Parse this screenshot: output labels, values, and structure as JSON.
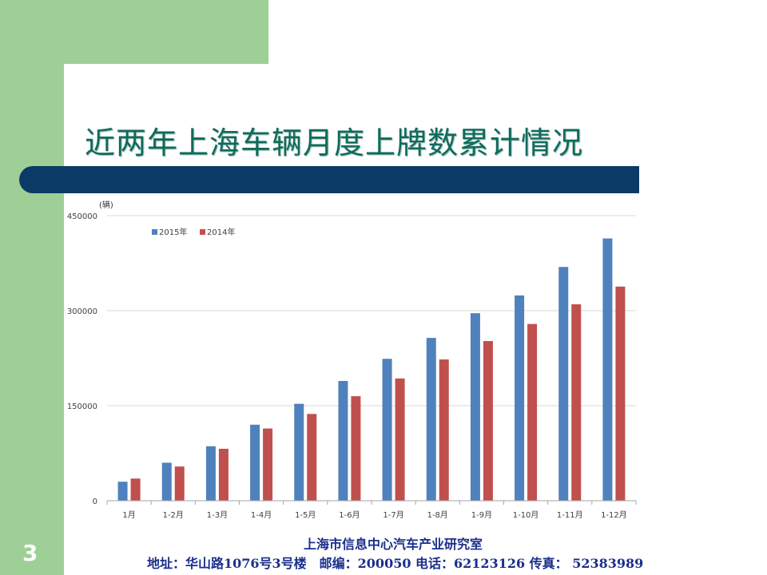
{
  "slide": {
    "title": "近两年上海车辆月度上牌数累计情况",
    "page_number": "3"
  },
  "footer": {
    "org": "上海市信息中心汽车产业研究室",
    "address": "地址：华山路1076号3号楼　邮编：200050  电话：62123126  传真：  52383989"
  },
  "chart_data": {
    "type": "bar",
    "unit_label": "(辆)",
    "categories": [
      "1月",
      "1-2月",
      "1-3月",
      "1-4月",
      "1-5月",
      "1-6月",
      "1-7月",
      "1-8月",
      "1-9月",
      "1-10月",
      "1-11月",
      "1-12月"
    ],
    "series": [
      {
        "name": "2015年",
        "color": "#4f81bd",
        "values": [
          30000,
          60000,
          86000,
          120000,
          153000,
          189000,
          224000,
          257000,
          296000,
          324000,
          369000,
          414000
        ]
      },
      {
        "name": "2014年",
        "color": "#c0504d",
        "values": [
          35000,
          54000,
          82000,
          114000,
          137000,
          165000,
          193000,
          223000,
          252000,
          279000,
          310000,
          338000
        ]
      }
    ],
    "y_ticks": [
      "0",
      "150000",
      "300000",
      "450000"
    ],
    "ylim": [
      0,
      450000
    ],
    "grid": true,
    "legend_position": "top-left"
  }
}
